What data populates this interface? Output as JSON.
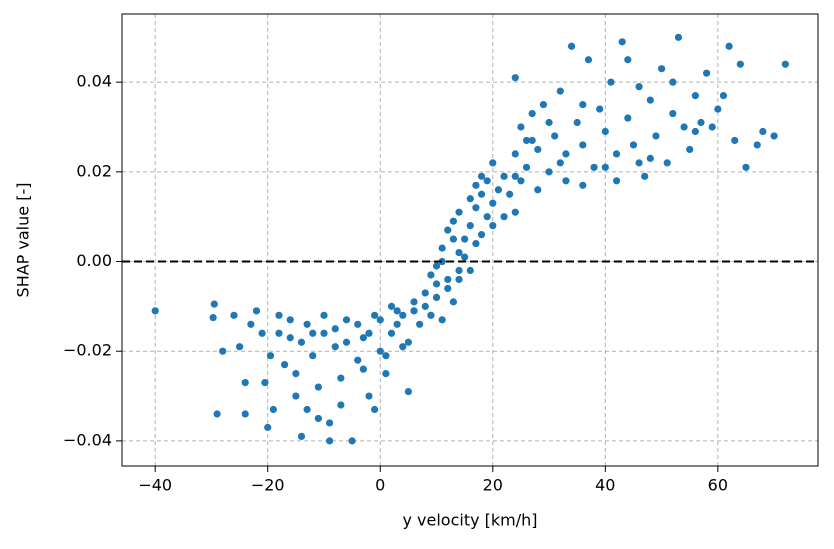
{
  "chart_data": {
    "type": "scatter",
    "xlabel": "y velocity [km/h]",
    "ylabel": "SHAP value [-]",
    "color": "#1f77b4",
    "grid": true,
    "reference_line": 0,
    "xlim": [
      -45.9,
      77.8
    ],
    "xticks": [
      {
        "value": -40,
        "label": "−40"
      },
      {
        "value": -20,
        "label": "−20"
      },
      0,
      20,
      40,
      60
    ],
    "ylim": [
      -0.0456,
      0.0552
    ],
    "yticks": [
      {
        "value": -0.04,
        "label": "−0.04"
      },
      {
        "value": -0.02,
        "label": "−0.02"
      },
      {
        "value": 0,
        "label": "0.00"
      },
      0.02,
      0.04
    ],
    "x": [
      -40,
      -29.5,
      -29.7,
      -29,
      -28,
      -26,
      -25,
      -24,
      -24,
      -23,
      -22,
      -21,
      -20.5,
      -20,
      -19.5,
      -19,
      -18,
      -17,
      -16,
      -15,
      -14,
      -13,
      -12,
      -11,
      -10,
      -9,
      -8,
      -7,
      -6,
      -5,
      -4,
      -3,
      -2,
      -1,
      0,
      1,
      2,
      3,
      4,
      5,
      -18,
      -16,
      -14,
      -12,
      -10,
      -8,
      -6,
      -4,
      -2,
      0,
      2,
      4,
      6,
      8,
      10,
      12,
      14,
      -15,
      -11,
      -7,
      -3,
      1,
      5,
      7,
      9,
      11,
      13,
      3,
      6,
      8,
      10,
      12,
      -13,
      -9,
      -1,
      14,
      15,
      16,
      17,
      18,
      19,
      20,
      11,
      12,
      13,
      14,
      15,
      16,
      17,
      18,
      19,
      20,
      21,
      22,
      23,
      24,
      25,
      26,
      18,
      17,
      20,
      22,
      9,
      10,
      11,
      13,
      14,
      16,
      24,
      25,
      26,
      27,
      28,
      29,
      30,
      31,
      32,
      33,
      34,
      35,
      36,
      37,
      38,
      39,
      40,
      41,
      42,
      43,
      44,
      45,
      46,
      47,
      48,
      49,
      50,
      51,
      52,
      53,
      54,
      55,
      56,
      57,
      58,
      59,
      60,
      61,
      62,
      64,
      63,
      65,
      67,
      68,
      70,
      72,
      24,
      27,
      30,
      33,
      36,
      40,
      44,
      48,
      52,
      56,
      24,
      28,
      32,
      36,
      42,
      46
    ],
    "values": [
      -0.011,
      -0.0095,
      -0.0125,
      -0.034,
      -0.02,
      -0.012,
      -0.019,
      -0.034,
      -0.027,
      -0.014,
      -0.011,
      -0.016,
      -0.027,
      -0.037,
      -0.021,
      -0.033,
      -0.012,
      -0.023,
      -0.017,
      -0.03,
      -0.039,
      -0.014,
      -0.021,
      -0.035,
      -0.016,
      -0.04,
      -0.019,
      -0.026,
      -0.013,
      -0.04,
      -0.022,
      -0.017,
      -0.03,
      -0.012,
      -0.02,
      -0.025,
      -0.016,
      -0.011,
      -0.019,
      -0.029,
      -0.016,
      -0.013,
      -0.018,
      -0.016,
      -0.012,
      -0.015,
      -0.018,
      -0.014,
      -0.016,
      -0.013,
      -0.01,
      -0.012,
      -0.009,
      -0.007,
      -0.005,
      -0.004,
      -0.002,
      -0.025,
      -0.028,
      -0.032,
      -0.024,
      -0.021,
      -0.018,
      -0.014,
      -0.012,
      -0.013,
      -0.009,
      -0.014,
      -0.011,
      -0.01,
      -0.008,
      -0.006,
      -0.033,
      -0.036,
      -0.033,
      0.002,
      0.005,
      0.008,
      0.012,
      0.015,
      0.018,
      0.022,
      0.003,
      0.007,
      0.009,
      0.011,
      0.001,
      -0.002,
      0.004,
      0.006,
      0.01,
      0.013,
      0.016,
      0.019,
      0.015,
      0.011,
      0.018,
      0.021,
      0.019,
      0.017,
      0.008,
      0.01,
      -0.003,
      -0.001,
      0,
      0.005,
      -0.004,
      0.014,
      0.024,
      0.03,
      0.027,
      0.033,
      0.025,
      0.035,
      0.02,
      0.028,
      0.038,
      0.024,
      0.048,
      0.031,
      0.026,
      0.045,
      0.021,
      0.034,
      0.029,
      0.04,
      0.024,
      0.049,
      0.032,
      0.026,
      0.039,
      0.019,
      0.036,
      0.028,
      0.043,
      0.022,
      0.033,
      0.05,
      0.03,
      0.025,
      0.037,
      0.031,
      0.042,
      0.03,
      0.034,
      0.037,
      0.048,
      0.044,
      0.027,
      0.021,
      0.026,
      0.029,
      0.028,
      0.044,
      0.041,
      0.027,
      0.031,
      0.018,
      0.035,
      0.021,
      0.045,
      0.023,
      0.04,
      0.029,
      0.019,
      0.016,
      0.022,
      0.017,
      0.018,
      0.022
    ]
  }
}
